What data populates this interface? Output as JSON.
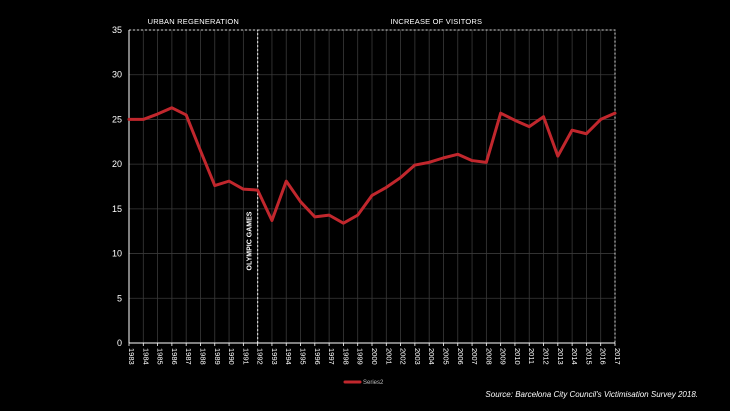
{
  "chart_data": {
    "type": "line",
    "title": "",
    "xlabel": "",
    "ylabel": "",
    "ylim": [
      0,
      35
    ],
    "y_ticks": [
      0,
      5,
      10,
      15,
      20,
      25,
      30,
      35
    ],
    "grid": true,
    "legend_position": "bottom-center",
    "x": [
      "1983",
      "1984",
      "1985",
      "1986",
      "1987",
      "1988",
      "1989",
      "1990",
      "1991",
      "1992",
      "1993",
      "1994",
      "1995",
      "1996",
      "1997",
      "1998",
      "1999",
      "2000",
      "2001",
      "2002",
      "2003",
      "2004",
      "2005",
      "2006",
      "2007",
      "2008",
      "2009",
      "2010",
      "2011",
      "2012",
      "2013",
      "2014",
      "2015",
      "2016",
      "2017"
    ],
    "series": [
      {
        "name": "Series2",
        "color": "#c1272d",
        "values": [
          25.0,
          25.0,
          25.6,
          26.3,
          25.5,
          21.5,
          17.6,
          18.1,
          17.2,
          17.1,
          13.7,
          18.1,
          15.8,
          14.1,
          14.3,
          13.4,
          14.3,
          16.5,
          17.4,
          18.5,
          19.9,
          20.2,
          20.7,
          21.1,
          20.4,
          20.2,
          25.7,
          24.9,
          24.2,
          25.3,
          20.9,
          23.8,
          23.4,
          25.0,
          25.7
        ]
      }
    ],
    "periods": [
      {
        "label": "URBAN REGENERATION",
        "from": "1983",
        "to": "1992"
      },
      {
        "label": "INCREASE OF VISITORS",
        "from": "1992",
        "to": "2017"
      }
    ],
    "annotations": [
      {
        "label": "OLYMPIC GAMES",
        "x": "1992"
      }
    ],
    "source": "Source: Barcelona City Council's Victimisation Survey 2018."
  },
  "colors": {
    "background": "#000000",
    "line": "#c1272d",
    "grid": "#3a3a3a",
    "axis": "#ffffff",
    "dashed": "#d9d9d9"
  }
}
